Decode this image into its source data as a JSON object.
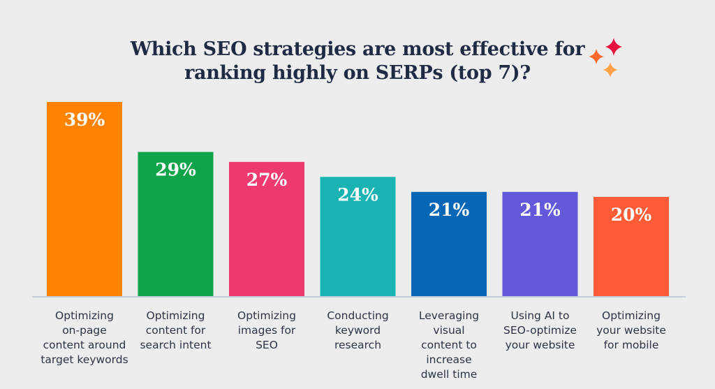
{
  "chart_data": {
    "type": "bar",
    "title_lines": [
      "Which SEO strategies are most effective for",
      "ranking highly on SERPs (top 7)?"
    ],
    "categories": [
      [
        "Optimizing",
        "on-page",
        "content around",
        "target keywords"
      ],
      [
        "Optimizing",
        "content for",
        "search intent"
      ],
      [
        "Optimizing",
        "images for",
        "SEO"
      ],
      [
        "Conducting",
        "keyword",
        "research"
      ],
      [
        "Leveraging",
        "visual",
        "content to",
        "increase",
        "dwell time"
      ],
      [
        "Using AI to",
        "SEO-optimize",
        "your website"
      ],
      [
        "Optimizing",
        "your website",
        "for mobile"
      ]
    ],
    "values": [
      39,
      29,
      27,
      24,
      21,
      21,
      20
    ],
    "value_labels": [
      "39%",
      "29%",
      "27%",
      "24%",
      "21%",
      "21%",
      "20%"
    ],
    "ylim": [
      0,
      39
    ],
    "unit": "%"
  },
  "colors": {
    "background": "#ededed",
    "title": "#1f2a44",
    "baseline": "#c5ccd6",
    "label_text": "#2b3444",
    "value_text": "#ffffff",
    "bars": [
      "#ff8300",
      "#10a44a",
      "#ef3a70",
      "#18b3b2",
      "#0567b6",
      "#6159da",
      "#ff5b36"
    ],
    "sparkles": [
      "#e8123f",
      "#ff6a2b",
      "#ffa24a"
    ]
  },
  "decor": {
    "icon": "sparkles-icon"
  }
}
